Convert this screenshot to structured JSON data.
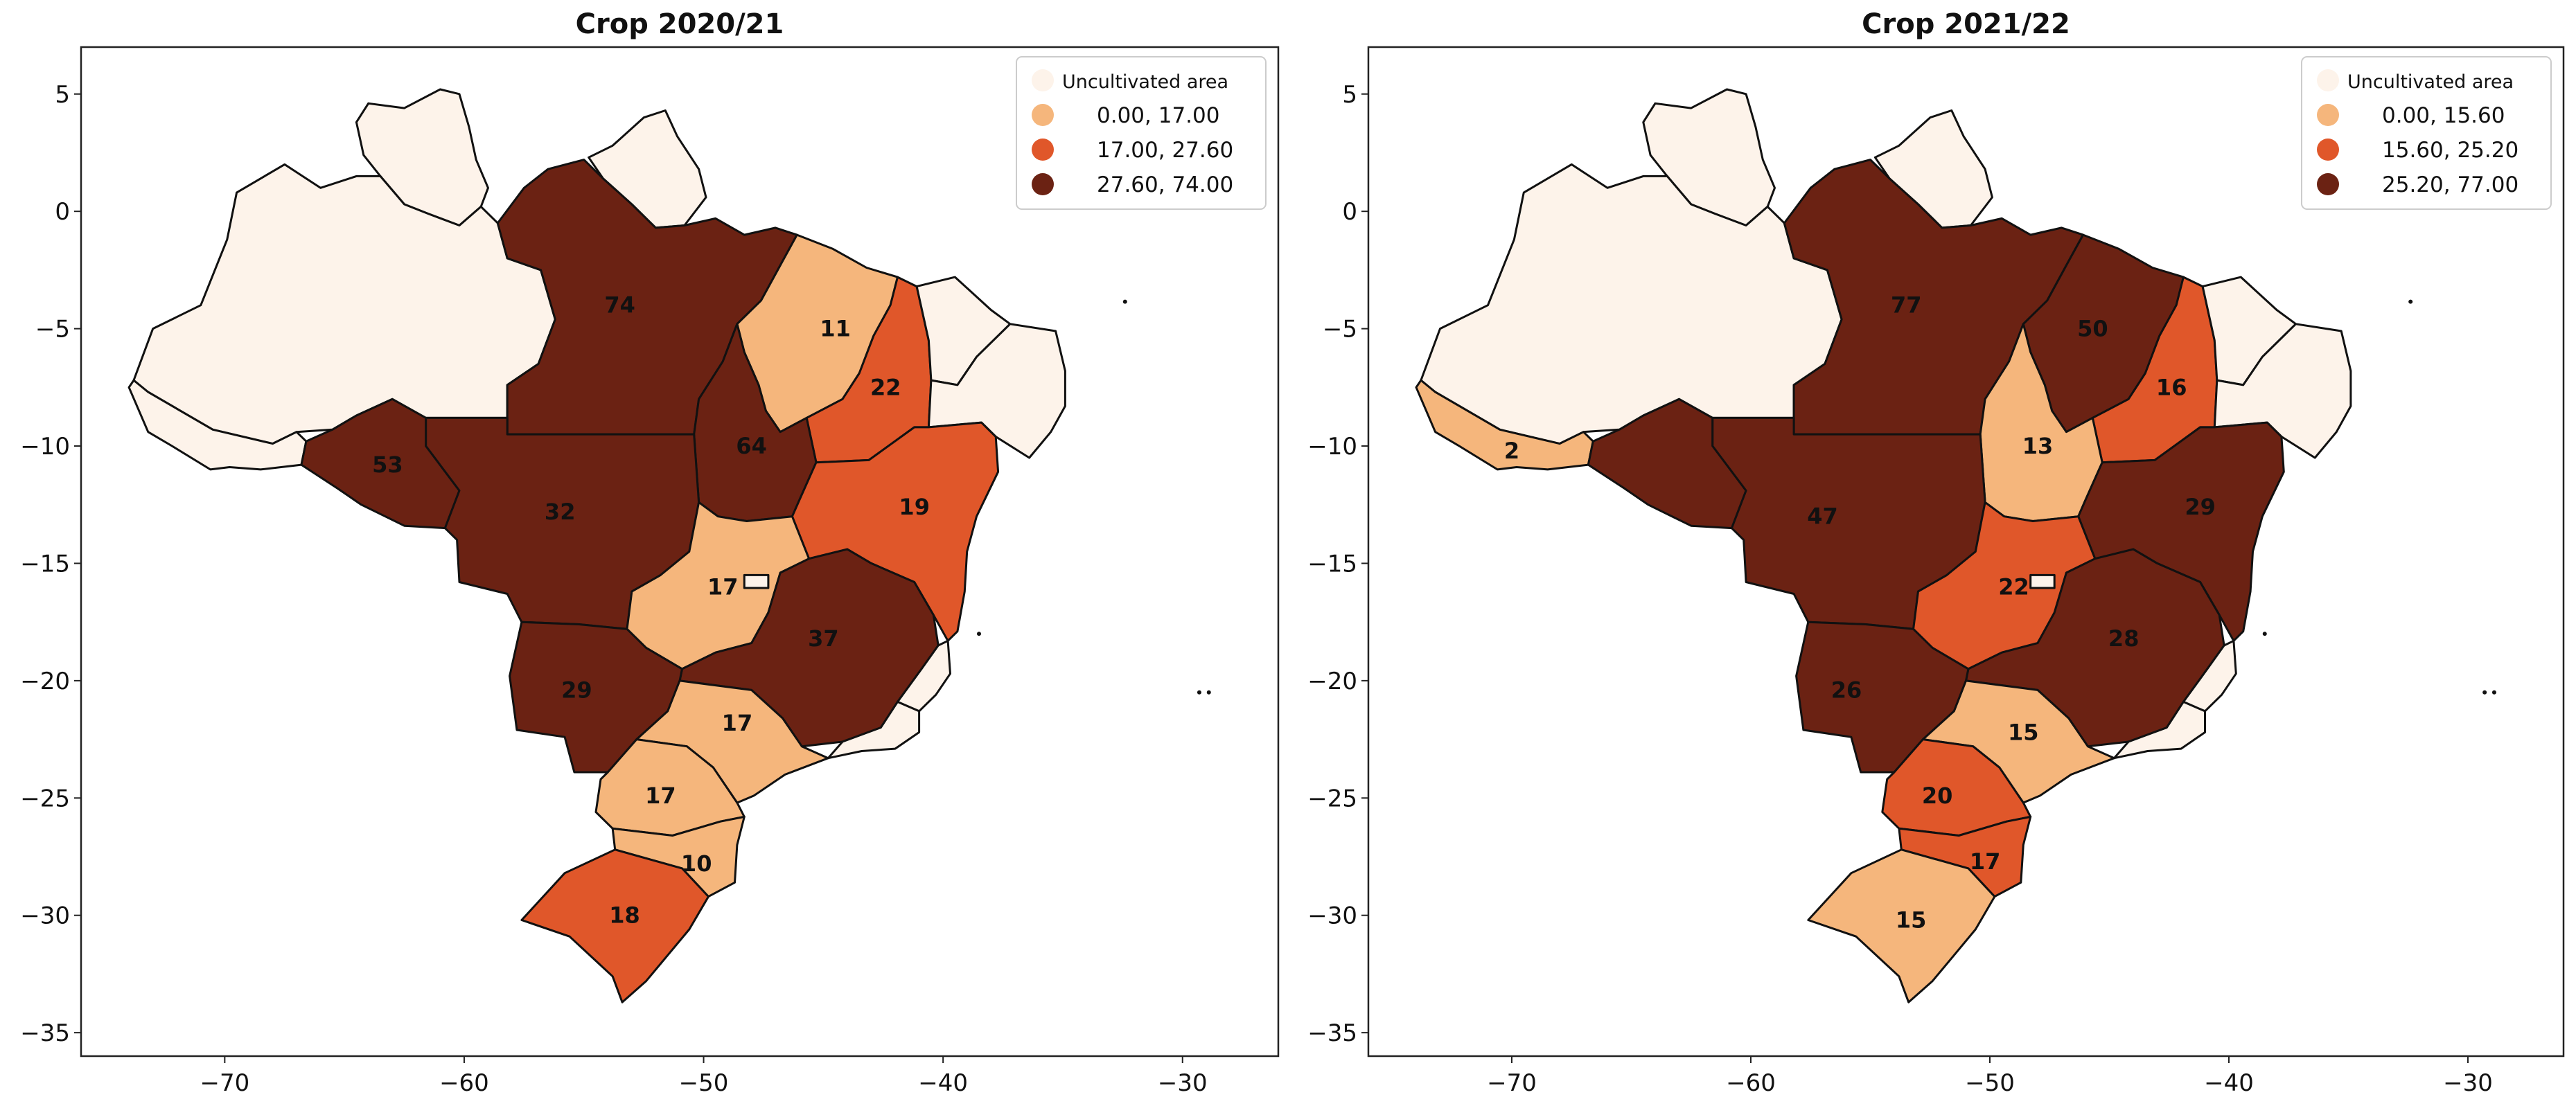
{
  "colors": {
    "uncultivated": "#fdf3ea",
    "class1": "#f5b67c",
    "class2": "#e0572a",
    "class3": "#6b2213"
  },
  "chart_data": [
    {
      "type": "choropleth-map",
      "title": "Crop 2020/21",
      "xlim": [
        -76,
        -26
      ],
      "ylim": [
        -36,
        7
      ],
      "xticks": [
        "−70",
        "−60",
        "−50",
        "−40",
        "−30"
      ],
      "yticks": [
        "5",
        "0",
        "−5",
        "−10",
        "−15",
        "−20",
        "−25",
        "−30",
        "−35"
      ],
      "legend": {
        "placement": "top-right",
        "entries": [
          "Uncultivated area",
          "0.00, 17.00",
          "17.00, 27.60",
          "27.60, 74.00"
        ]
      },
      "regions": [
        {
          "name": "Roraima",
          "value": null,
          "class": 0
        },
        {
          "name": "Amapá",
          "value": null,
          "class": 0
        },
        {
          "name": "Amazonas",
          "value": null,
          "class": 0
        },
        {
          "name": "Acre",
          "value": null,
          "class": 0
        },
        {
          "name": "Pará",
          "value": 74,
          "label": "74",
          "class": 3
        },
        {
          "name": "Maranhão",
          "value": 11,
          "label": "11",
          "class": 1
        },
        {
          "name": "Piauí",
          "value": 22,
          "label": "22",
          "class": 2
        },
        {
          "name": "Ceará",
          "value": null,
          "class": 0
        },
        {
          "name": "Northeast coast",
          "value": null,
          "class": 0
        },
        {
          "name": "Tocantins",
          "value": 64,
          "label": "64",
          "class": 3
        },
        {
          "name": "Rondônia",
          "value": 53,
          "label": "53",
          "class": 3
        },
        {
          "name": "Mato Grosso",
          "value": 32,
          "label": "32",
          "class": 3
        },
        {
          "name": "Bahia",
          "value": 19,
          "label": "19",
          "class": 2
        },
        {
          "name": "Goiás",
          "value": 17,
          "label": "17",
          "class": 1
        },
        {
          "name": "Minas Gerais",
          "value": 37,
          "label": "37",
          "class": 3
        },
        {
          "name": "Mato Grosso do Sul",
          "value": 29,
          "label": "29",
          "class": 3
        },
        {
          "name": "São Paulo",
          "value": 17,
          "label": "17",
          "class": 1
        },
        {
          "name": "Espírito Santo",
          "value": null,
          "class": 0
        },
        {
          "name": "Rio de Janeiro",
          "value": null,
          "class": 0
        },
        {
          "name": "Paraná",
          "value": 17,
          "label": "17",
          "class": 1
        },
        {
          "name": "Santa Catarina",
          "value": 10,
          "label": "10",
          "class": 1
        },
        {
          "name": "Rio Grande do Sul",
          "value": 18,
          "label": "18",
          "class": 2
        },
        {
          "name": "Distrito Federal",
          "value": null,
          "class": 0
        }
      ]
    },
    {
      "type": "choropleth-map",
      "title": "Crop 2021/22",
      "xlim": [
        -76,
        -26
      ],
      "ylim": [
        -36,
        7
      ],
      "xticks": [
        "−70",
        "−60",
        "−50",
        "−40",
        "−30"
      ],
      "yticks": [
        "5",
        "0",
        "−5",
        "−10",
        "−15",
        "−20",
        "−25",
        "−30",
        "−35"
      ],
      "legend": {
        "placement": "top-right",
        "entries": [
          "Uncultivated area",
          "0.00, 15.60",
          "15.60, 25.20",
          "25.20, 77.00"
        ]
      },
      "regions": [
        {
          "name": "Roraima",
          "value": null,
          "class": 0
        },
        {
          "name": "Amapá",
          "value": null,
          "class": 0
        },
        {
          "name": "Amazonas",
          "value": null,
          "class": 0
        },
        {
          "name": "Acre",
          "value": 2,
          "label": "2",
          "class": 1
        },
        {
          "name": "Pará",
          "value": 77,
          "label": "77",
          "class": 3
        },
        {
          "name": "Maranhão",
          "value": 50,
          "label": "50",
          "class": 3
        },
        {
          "name": "Piauí",
          "value": 16,
          "label": "16",
          "class": 2
        },
        {
          "name": "Ceará",
          "value": null,
          "class": 0
        },
        {
          "name": "Northeast coast",
          "value": null,
          "class": 0
        },
        {
          "name": "Tocantins",
          "value": 13,
          "label": "13",
          "class": 1
        },
        {
          "name": "Rondônia",
          "value": null,
          "class": 3
        },
        {
          "name": "Mato Grosso",
          "value": 47,
          "label": "47",
          "class": 3
        },
        {
          "name": "Bahia",
          "value": 29,
          "label": "29",
          "class": 3
        },
        {
          "name": "Goiás",
          "value": 22,
          "label": "22",
          "class": 2
        },
        {
          "name": "Minas Gerais",
          "value": 28,
          "label": "28",
          "class": 3
        },
        {
          "name": "Mato Grosso do Sul",
          "value": 26,
          "label": "26",
          "class": 3
        },
        {
          "name": "São Paulo",
          "value": 15,
          "label": "15",
          "class": 1
        },
        {
          "name": "Espírito Santo",
          "value": null,
          "class": 0
        },
        {
          "name": "Rio de Janeiro",
          "value": null,
          "class": 0
        },
        {
          "name": "Paraná",
          "value": 20,
          "label": "20",
          "class": 2
        },
        {
          "name": "Santa Catarina",
          "value": 17,
          "label": "17",
          "class": 2
        },
        {
          "name": "Rio Grande do Sul",
          "value": 15,
          "label": "15",
          "class": 1
        },
        {
          "name": "Distrito Federal",
          "value": null,
          "class": 0
        }
      ]
    }
  ]
}
